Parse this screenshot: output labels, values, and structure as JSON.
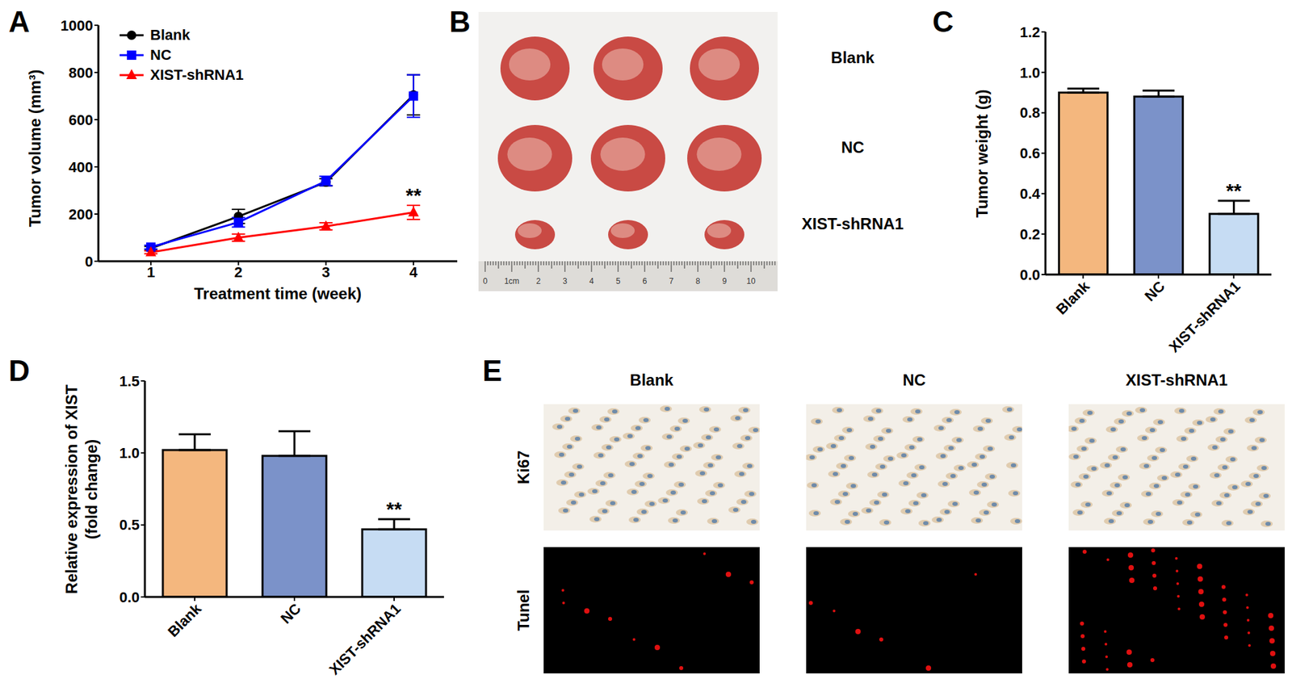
{
  "chart_data": [
    {
      "panel": "A",
      "type": "line",
      "x_label": "Treatment time (week)",
      "y_label": "Tumor volume (mm³)",
      "x": [
        1,
        2,
        3,
        4
      ],
      "xlim": [
        0.4,
        4.5
      ],
      "xticks": [
        1,
        2,
        3,
        4
      ],
      "ylim": [
        0,
        1000
      ],
      "yticks": [
        0,
        200,
        400,
        600,
        800,
        1000
      ],
      "grid": false,
      "legend": "upper left",
      "series": [
        {
          "name": "Blank",
          "color": "#000000",
          "marker": "circle",
          "values": [
            55,
            190,
            335,
            705
          ],
          "errors": [
            8,
            30,
            15,
            85
          ]
        },
        {
          "name": "NC",
          "color": "#0000ff",
          "marker": "square",
          "values": [
            60,
            165,
            340,
            700
          ],
          "errors": [
            8,
            20,
            20,
            90
          ]
        },
        {
          "name": "XIST-shRNA1",
          "color": "#ff0000",
          "marker": "triangle",
          "values": [
            38,
            100,
            148,
            207
          ],
          "errors": [
            6,
            15,
            15,
            30
          ]
        }
      ],
      "annotations": [
        {
          "text": "**",
          "series": "XIST-shRNA1",
          "x": 4
        }
      ]
    },
    {
      "panel": "C",
      "type": "bar",
      "y_label": [
        "Tumor weight (g)"
      ],
      "categories": [
        "Blank",
        "NC",
        "XIST-shRNA1"
      ],
      "values": [
        0.9,
        0.88,
        0.3
      ],
      "errors": [
        0.02,
        0.03,
        0.065
      ],
      "colors": [
        "#f4b77e",
        "#7b92c9",
        "#c6dcf3"
      ],
      "ylim": [
        0,
        1.2
      ],
      "yticks": [
        {
          "value": 0,
          "label": "0.0"
        },
        0.2,
        0.4,
        0.6,
        0.8,
        {
          "value": 1,
          "label": "1.0"
        },
        1.2
      ],
      "grid": false,
      "annotations": [
        {
          "text": "**",
          "category": "XIST-shRNA1"
        }
      ]
    },
    {
      "panel": "D",
      "type": "bar",
      "y_label": [
        "Relative expression of XIST",
        "(fold change)"
      ],
      "categories": [
        "Blank",
        "NC",
        "XIST-shRNA1"
      ],
      "values": [
        1.02,
        0.98,
        0.47
      ],
      "errors": [
        0.11,
        0.17,
        0.07
      ],
      "colors": [
        "#f4b77e",
        "#7b92c9",
        "#c6dcf3"
      ],
      "ylim": [
        0,
        1.5
      ],
      "yticks": [
        {
          "value": 0,
          "label": "0.0"
        },
        0.5,
        {
          "value": 1,
          "label": "1.0"
        },
        1.5
      ],
      "grid": false,
      "annotations": [
        {
          "text": "**",
          "category": "XIST-shRNA1"
        }
      ]
    }
  ],
  "images": [
    {
      "panel": "B",
      "row_labels": [
        "Blank",
        "NC",
        "XIST-shRNA1"
      ],
      "ruler_labels": [
        "0",
        "1cm",
        "2",
        "3",
        "4",
        "5",
        "6",
        "7",
        "8",
        "9",
        "10"
      ]
    },
    {
      "panel": "E",
      "column_labels": [
        "Blank",
        "NC",
        "XIST-shRNA1"
      ],
      "row_labels": [
        "Ki67",
        "Tunel"
      ]
    }
  ]
}
